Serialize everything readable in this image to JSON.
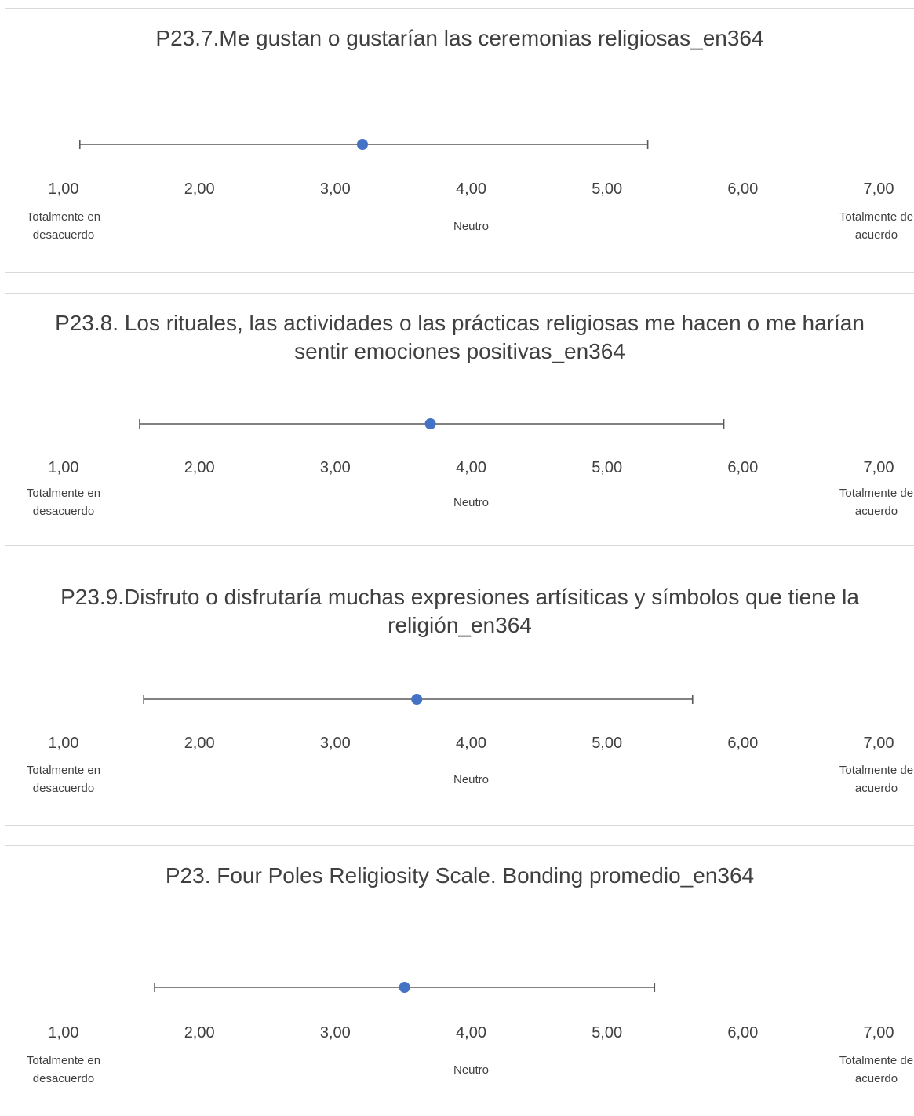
{
  "colors": {
    "marker": "#4472c4",
    "errorbar": "#595959",
    "border": "#d9d9d9",
    "text": "#404040"
  },
  "anchors": {
    "low": "Totalmente en desacuerdo",
    "mid": "Neutro",
    "high": "Totalmente de acuerdo"
  },
  "chart_data": [
    {
      "type": "scatter",
      "title": "P23.7.Me gustan o gustarían las ceremonias religiosas_en364",
      "xlim": [
        1,
        7
      ],
      "tick_labels": [
        "1,00",
        "2,00",
        "3,00",
        "4,00",
        "5,00",
        "6,00",
        "7,00"
      ],
      "mean": 3.2,
      "error_low": 1.12,
      "error_high": 5.3
    },
    {
      "type": "scatter",
      "title": "P23.8. Los rituales, las actividades o las prácticas religiosas me hacen o me harían sentir emociones positivas_en364",
      "xlim": [
        1,
        7
      ],
      "tick_labels": [
        "1,00",
        "2,00",
        "3,00",
        "4,00",
        "5,00",
        "6,00",
        "7,00"
      ],
      "mean": 3.7,
      "error_low": 1.56,
      "error_high": 5.86
    },
    {
      "type": "scatter",
      "title": "P23.9.Disfruto o disfrutaría muchas expresiones artísiticas y símbolos que tiene la religión_en364",
      "xlim": [
        1,
        7
      ],
      "tick_labels": [
        "1,00",
        "2,00",
        "3,00",
        "4,00",
        "5,00",
        "6,00",
        "7,00"
      ],
      "mean": 3.6,
      "error_low": 1.59,
      "error_high": 5.63
    },
    {
      "type": "scatter",
      "title": "P23. Four Poles Religiosity Scale. Bonding promedio_en364",
      "xlim": [
        1,
        7
      ],
      "tick_labels": [
        "1,00",
        "2,00",
        "3,00",
        "4,00",
        "5,00",
        "6,00",
        "7,00"
      ],
      "mean": 3.51,
      "error_low": 1.67,
      "error_high": 5.35
    }
  ]
}
